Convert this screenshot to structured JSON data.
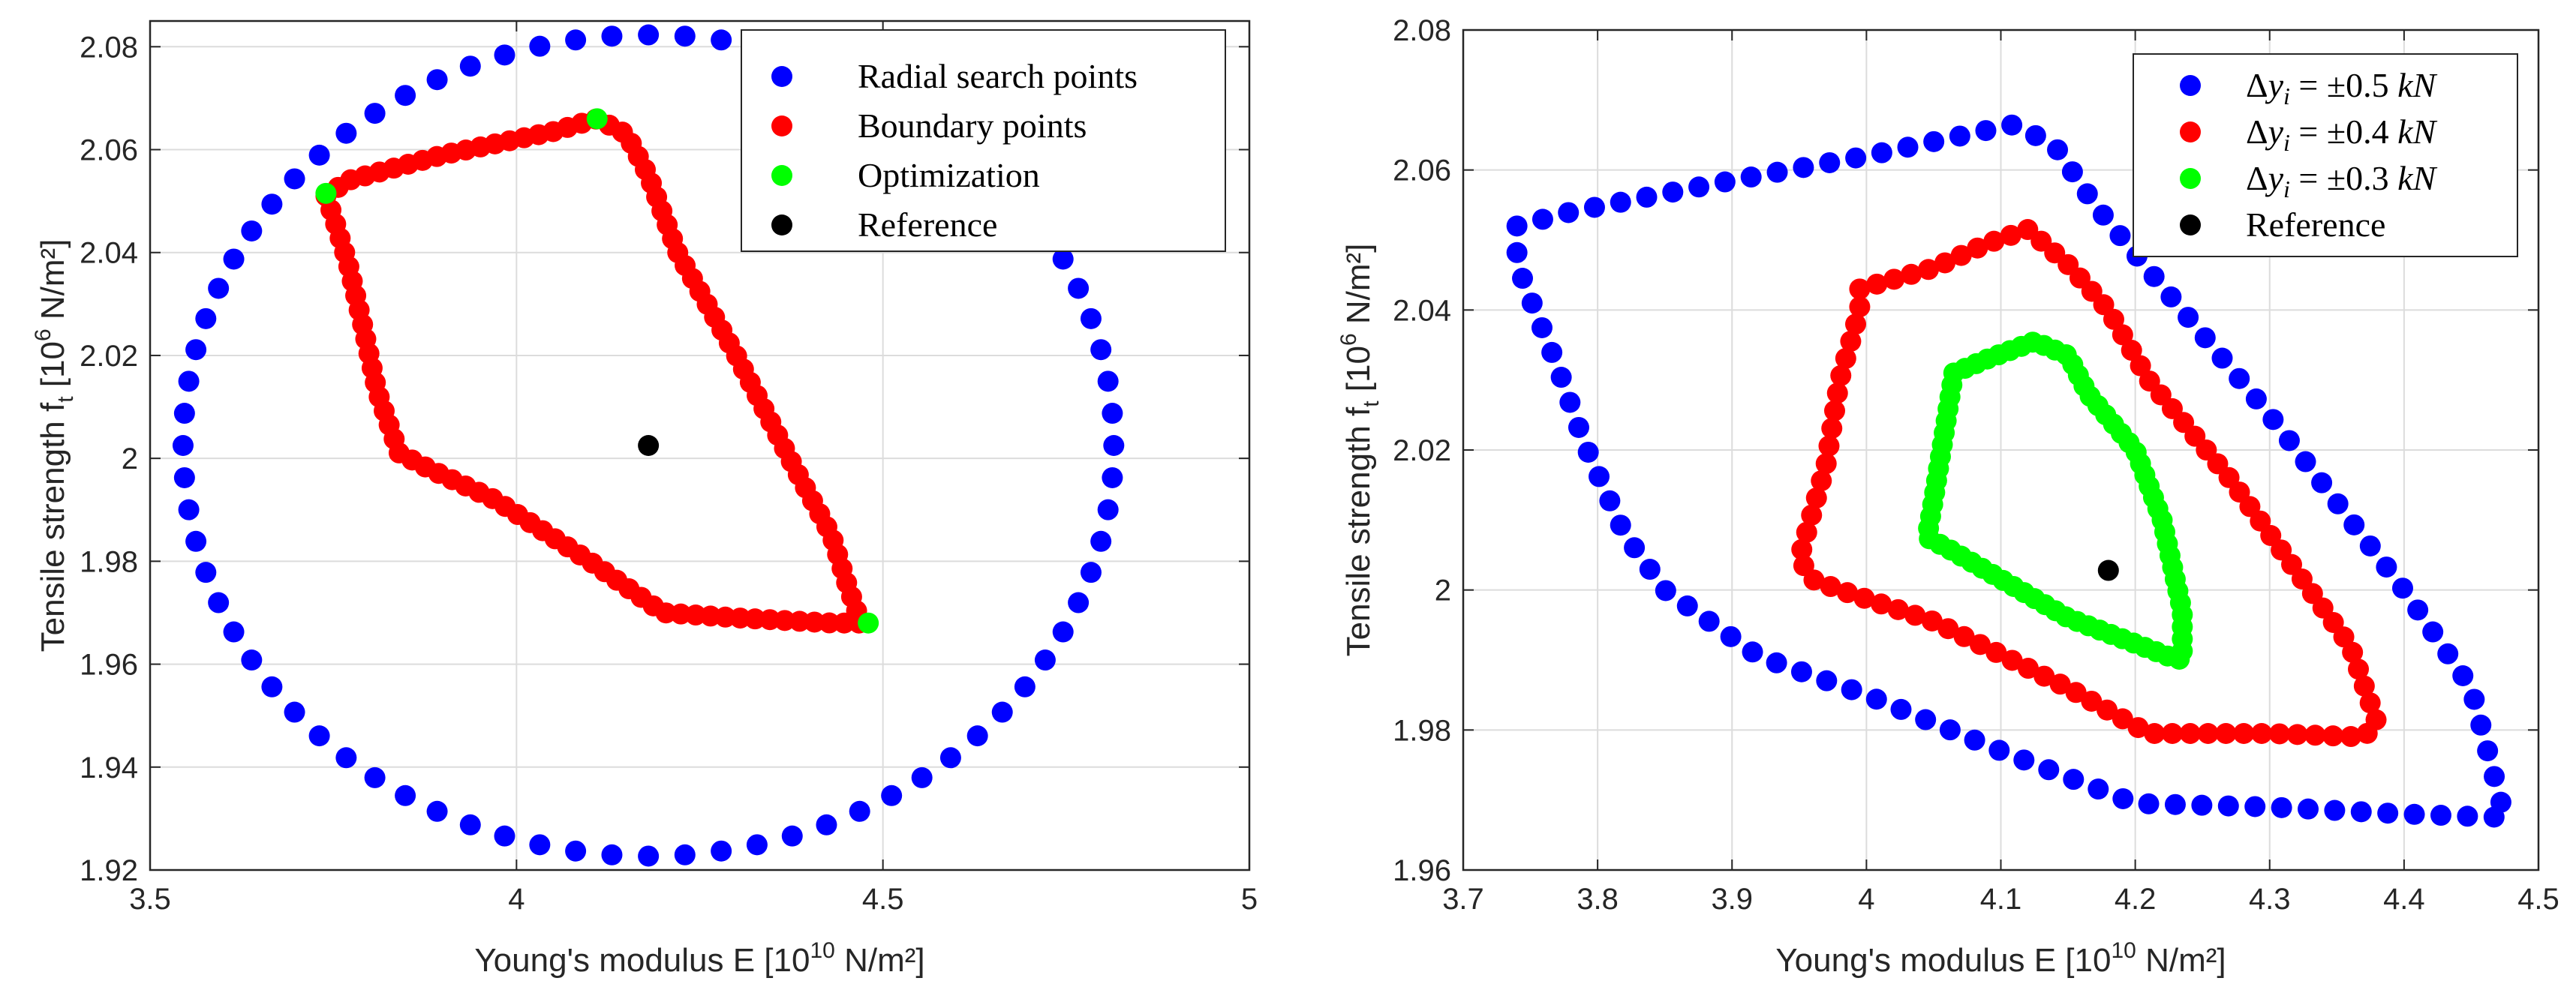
{
  "chart_data": [
    {
      "type": "scatter",
      "xlabel_prefix": "Young's modulus E [10",
      "xlabel_exp": "10",
      "xlabel_suffix": " N/m²]",
      "ylabel_prefix": "Tensile strength f",
      "ylabel_sub": "t",
      "ylabel_mid": " [10",
      "ylabel_exp": "6",
      "ylabel_suffix": " N/m²]",
      "xlim": [
        3.5,
        5.0
      ],
      "ylim": [
        1.92,
        2.085
      ],
      "xticks": [
        3.5,
        4.0,
        4.5,
        5.0
      ],
      "xtick_labels": [
        "3.5",
        "4",
        "4.5",
        "5"
      ],
      "yticks": [
        1.92,
        1.94,
        1.96,
        1.98,
        2.0,
        2.02,
        2.04,
        2.06,
        2.08
      ],
      "ytick_labels": [
        "1.92",
        "1.94",
        "1.96",
        "1.98",
        "2",
        "2.02",
        "2.04",
        "2.06",
        "2.08"
      ],
      "grid": true,
      "legend_position": "top-right",
      "colors": {
        "blue": "#0000ff",
        "red": "#ff0000",
        "green": "#00ff00",
        "black": "#000000"
      },
      "series": [
        {
          "name": "Radial search points",
          "color": "#0000ff",
          "generator": "ellipse",
          "center": [
            4.18,
            2.0025
          ],
          "radii": [
            0.635,
            0.0798
          ],
          "count": 80
        },
        {
          "name": "Boundary points",
          "color": "#ff0000",
          "generator": "polyline",
          "vertices": [
            [
              3.74,
              2.051
            ],
            [
              3.77,
              2.054
            ],
            [
              3.9,
              2.059
            ],
            [
              4.05,
              2.0635
            ],
            [
              4.11,
              2.066
            ],
            [
              4.15,
              2.063
            ],
            [
              4.18,
              2.055
            ],
            [
              4.22,
              2.04
            ],
            [
              4.3,
              2.02
            ],
            [
              4.38,
              1.998
            ],
            [
              4.43,
              1.985
            ],
            [
              4.45,
              1.976
            ],
            [
              4.47,
              1.968
            ],
            [
              4.43,
              1.968
            ],
            [
              4.3,
              1.969
            ],
            [
              4.2,
              1.97
            ],
            [
              4.1,
              1.98
            ],
            [
              3.97,
              1.992
            ],
            [
              3.88,
              1.998
            ],
            [
              3.84,
              2.001
            ],
            [
              3.81,
              2.013
            ],
            [
              3.79,
              2.026
            ],
            [
              3.77,
              2.038
            ],
            [
              3.75,
              2.047
            ]
          ],
          "count": 110
        },
        {
          "name": "Optimization",
          "color": "#00ff00",
          "generator": "points",
          "points": [
            [
              3.74,
              2.0515
            ],
            [
              4.11,
              2.066
            ],
            [
              4.48,
              1.968
            ]
          ]
        },
        {
          "name": "Reference",
          "color": "#000000",
          "generator": "points",
          "points": [
            [
              4.18,
              2.0025
            ]
          ]
        }
      ]
    },
    {
      "type": "scatter",
      "xlabel_prefix": "Young's modulus E [10",
      "xlabel_exp": "10",
      "xlabel_suffix": " N/m²]",
      "ylabel_prefix": "Tensile strength f",
      "ylabel_sub": "t",
      "ylabel_mid": " [10",
      "ylabel_exp": "6",
      "ylabel_suffix": " N/m²]",
      "xlim": [
        3.7,
        4.5
      ],
      "ylim": [
        1.96,
        2.08
      ],
      "xticks": [
        3.7,
        3.8,
        3.9,
        4.0,
        4.1,
        4.2,
        4.3,
        4.4,
        4.5
      ],
      "xtick_labels": [
        "3.7",
        "3.8",
        "3.9",
        "4",
        "4.1",
        "4.2",
        "4.3",
        "4.4",
        "4.5"
      ],
      "yticks": [
        1.96,
        1.98,
        2.0,
        2.02,
        2.04,
        2.06,
        2.08
      ],
      "ytick_labels": [
        "1.96",
        "1.98",
        "2",
        "2.02",
        "2.04",
        "2.06",
        "2.08"
      ],
      "grid": true,
      "legend_position": "top-right",
      "colors": {
        "blue": "#0000ff",
        "red": "#ff0000",
        "green": "#00ff00",
        "black": "#000000"
      },
      "series": [
        {
          "name": "Δy_i = ±0.5 kN",
          "legend_delta": "Δ",
          "legend_var": "y",
          "legend_sub": "i",
          "legend_eq": " = ±0.5 ",
          "legend_unit": "kN",
          "color": "#0000ff",
          "generator": "polyline",
          "vertices": [
            [
              3.74,
              2.052
            ],
            [
              3.78,
              2.054
            ],
            [
              3.9,
              2.0585
            ],
            [
              4.0,
              2.062
            ],
            [
              4.11,
              2.0665
            ],
            [
              4.14,
              2.0635
            ],
            [
              4.17,
              2.055
            ],
            [
              4.2,
              2.048
            ],
            [
              4.3,
              2.025
            ],
            [
              4.4,
              2.0
            ],
            [
              4.45,
              1.986
            ],
            [
              4.475,
              1.9675
            ],
            [
              4.4,
              1.968
            ],
            [
              4.3,
              1.969
            ],
            [
              4.2,
              1.9695
            ],
            [
              4.1,
              1.977
            ],
            [
              4.0,
              1.985
            ],
            [
              3.92,
              1.9905
            ],
            [
              3.85,
              2.0
            ],
            [
              3.82,
              2.008
            ],
            [
              3.79,
              2.021
            ],
            [
              3.77,
              2.032
            ],
            [
              3.745,
              2.044
            ],
            [
              3.74,
              2.047
            ]
          ],
          "count": 100
        },
        {
          "name": "Δy_i = ±0.4 kN",
          "legend_delta": "Δ",
          "legend_var": "y",
          "legend_sub": "i",
          "legend_eq": " = ±0.4 ",
          "legend_unit": "kN",
          "color": "#ff0000",
          "generator": "polyline",
          "vertices": [
            [
              3.995,
              2.043
            ],
            [
              4.05,
              2.046
            ],
            [
              4.09,
              2.0495
            ],
            [
              4.12,
              2.0515
            ],
            [
              4.15,
              2.0465
            ],
            [
              4.18,
              2.04
            ],
            [
              4.21,
              2.03
            ],
            [
              4.27,
              2.016
            ],
            [
              4.33,
              2.0
            ],
            [
              4.36,
              1.992
            ],
            [
              4.38,
              1.981
            ],
            [
              4.37,
              1.979
            ],
            [
              4.3,
              1.9795
            ],
            [
              4.21,
              1.9795
            ],
            [
              4.15,
              1.986
            ],
            [
              4.05,
              1.9955
            ],
            [
              3.98,
              2.0
            ],
            [
              3.96,
              2.0015
            ],
            [
              3.95,
              2.0045
            ],
            [
              3.97,
              2.018
            ],
            [
              3.98,
              2.03
            ],
            [
              3.995,
              2.04
            ]
          ],
          "count": 95
        },
        {
          "name": "Δy_i = ±0.3 kN",
          "legend_delta": "Δ",
          "legend_var": "y",
          "legend_sub": "i",
          "legend_eq": " = ±0.3 ",
          "legend_unit": "kN",
          "color": "#00ff00",
          "generator": "polyline",
          "vertices": [
            [
              4.065,
              2.031
            ],
            [
              4.09,
              2.033
            ],
            [
              4.125,
              2.0355
            ],
            [
              4.15,
              2.0335
            ],
            [
              4.165,
              2.028
            ],
            [
              4.2,
              2.02
            ],
            [
              4.22,
              2.01
            ],
            [
              4.235,
              1.997
            ],
            [
              4.235,
              1.99
            ],
            [
              4.225,
              1.9905
            ],
            [
              4.15,
              1.996
            ],
            [
              4.06,
              2.006
            ],
            [
              4.045,
              2.0075
            ],
            [
              4.05,
              2.013
            ],
            [
              4.06,
              2.025
            ]
          ],
          "count": 75
        },
        {
          "name": "Reference",
          "color": "#000000",
          "generator": "points",
          "points": [
            [
              4.18,
              2.0028
            ]
          ]
        }
      ]
    }
  ]
}
